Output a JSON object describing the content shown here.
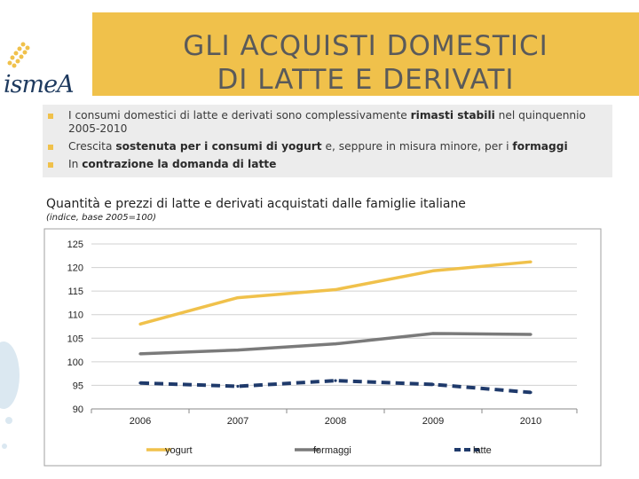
{
  "logo": {
    "brand": "ismea",
    "text": "ismeA"
  },
  "title": {
    "line1": "GLI ACQUISTI DOMESTICI",
    "line2": "DI LATTE E DERIVATI"
  },
  "bullets": [
    {
      "pre": "I consumi domestici di latte e derivati sono complessivamente ",
      "bold": "rimasti stabili",
      "post": " nel quinquennio 2005-2010"
    },
    {
      "pre": "Crescita ",
      "bold": "sostenuta per i consumi di yogurt",
      "mid": " e, seppure in misura minore, per i ",
      "bold2": "formaggi"
    },
    {
      "pre": "In ",
      "bold": "contrazione la domanda di latte"
    }
  ],
  "chart_title": "Quantità e prezzi di latte e derivati acquistati dalle famiglie italiane",
  "chart_subtitle": "(indice, base 2005=100)",
  "colors": {
    "yogurt": "#f0c14b",
    "formaggi": "#7a7a7a",
    "latte": "#1f3a6b",
    "title_bg": "#f0c14b",
    "bullet_bg": "#ececec"
  },
  "chart_data": {
    "type": "line",
    "x": [
      "2006",
      "2007",
      "2008",
      "2009",
      "2010"
    ],
    "ylim": [
      90,
      125
    ],
    "yticks": [
      90,
      95,
      100,
      105,
      110,
      115,
      120,
      125
    ],
    "series": [
      {
        "name": "yogurt",
        "values": [
          108,
          113.6,
          115.3,
          119.3,
          121.2
        ]
      },
      {
        "name": "formaggi",
        "values": [
          101.7,
          102.5,
          103.8,
          106,
          105.8
        ]
      },
      {
        "name": "latte",
        "values": [
          95.5,
          94.8,
          96,
          95.2,
          93.5
        ]
      }
    ],
    "legend": [
      "yogurt",
      "formaggi",
      "latte"
    ],
    "legend_position": "bottom"
  }
}
